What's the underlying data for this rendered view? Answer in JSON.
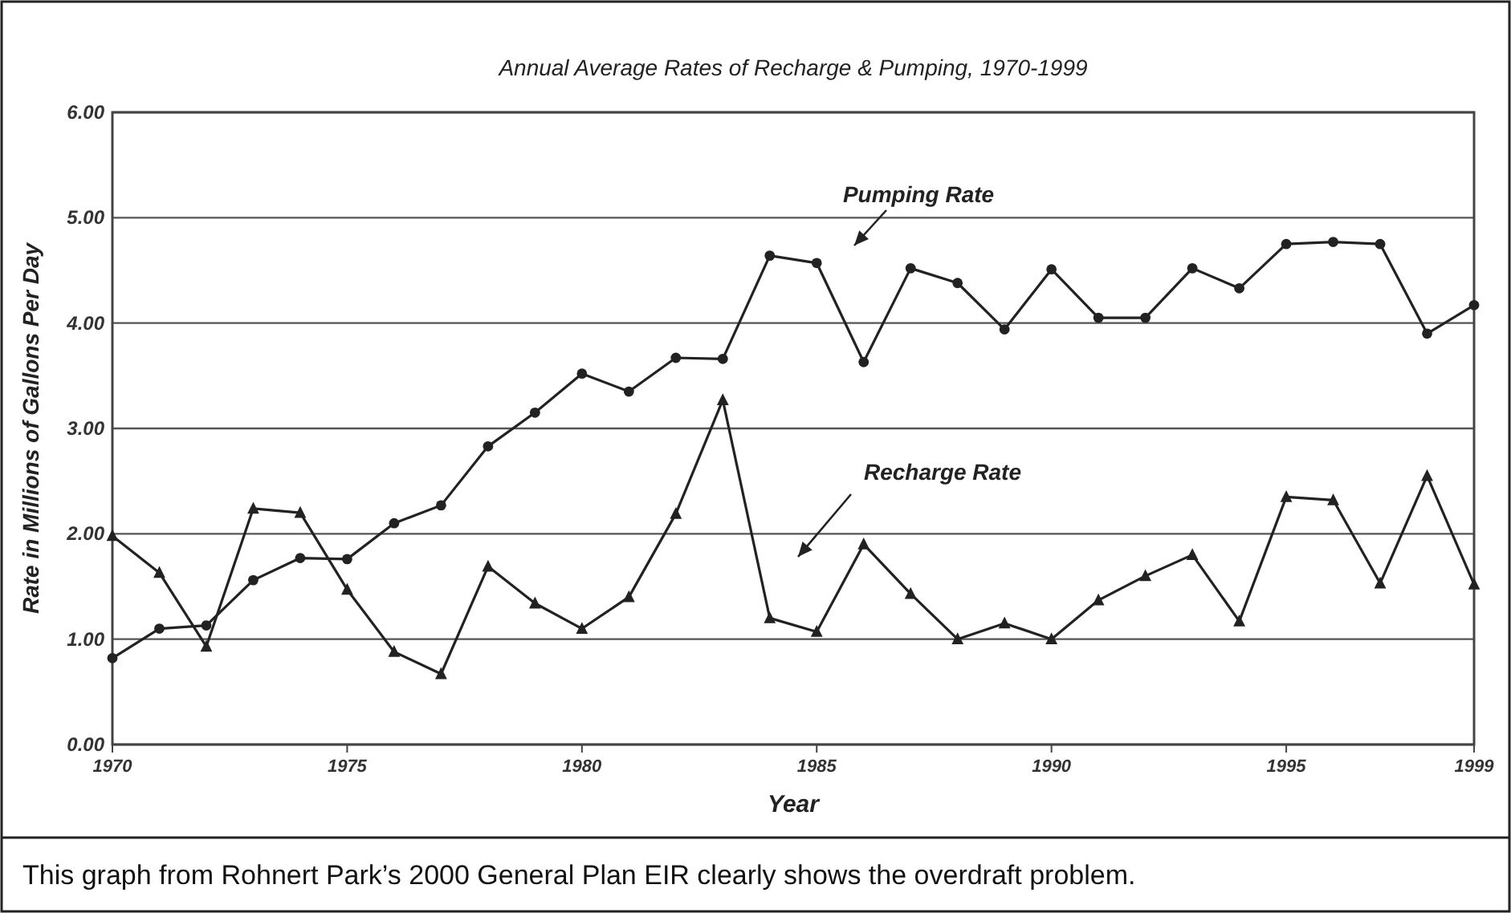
{
  "chart_data": {
    "type": "line",
    "title": "Annual Average Rates of Recharge & Pumping, 1970-1999",
    "xlabel": "Year",
    "ylabel": "Rate in Millions of Gallons Per Day",
    "x": [
      1970,
      1971,
      1972,
      1973,
      1974,
      1975,
      1976,
      1977,
      1978,
      1979,
      1980,
      1981,
      1982,
      1983,
      1984,
      1985,
      1986,
      1987,
      1988,
      1989,
      1990,
      1991,
      1992,
      1993,
      1994,
      1995,
      1996,
      1997,
      1998,
      1999
    ],
    "series": [
      {
        "name": "Pumping Rate",
        "color": "#222222",
        "marker": "circle",
        "values": [
          0.82,
          1.1,
          1.13,
          1.56,
          1.77,
          1.76,
          2.1,
          2.27,
          2.83,
          3.15,
          3.52,
          3.35,
          3.67,
          3.66,
          4.64,
          4.57,
          3.63,
          4.52,
          4.38,
          3.94,
          4.51,
          4.05,
          4.05,
          4.52,
          4.33,
          4.75,
          4.77,
          4.75,
          3.9,
          4.17
        ]
      },
      {
        "name": "Recharge Rate",
        "color": "#222222",
        "marker": "triangle",
        "values": [
          1.98,
          1.63,
          0.93,
          2.24,
          2.2,
          1.47,
          0.88,
          0.67,
          1.69,
          1.34,
          1.1,
          1.4,
          2.19,
          3.27,
          1.2,
          1.07,
          1.9,
          1.43,
          1.0,
          1.15,
          1.0,
          1.37,
          1.6,
          1.8,
          1.17,
          2.35,
          2.32,
          1.53,
          2.55,
          1.52
        ]
      }
    ],
    "xlim": [
      1970,
      1999
    ],
    "xticks": [
      1970,
      1975,
      1980,
      1985,
      1990,
      1995,
      1999
    ],
    "ylim": [
      0,
      6
    ],
    "yticks": [
      {
        "value": 0,
        "label": "0.00"
      },
      {
        "value": 1,
        "label": "1.00"
      },
      {
        "value": 2,
        "label": "2.00"
      },
      {
        "value": 3,
        "label": "3.00"
      },
      {
        "value": 4,
        "label": "4.00"
      },
      {
        "value": 5,
        "label": "5.00"
      },
      {
        "value": 6,
        "label": "6.00"
      }
    ],
    "grid": "y",
    "line_style": "solid",
    "annotations": [
      "This graph from Rohnert Park’s 2000 General Plan EIR clearly shows the overdraft problem."
    ]
  }
}
